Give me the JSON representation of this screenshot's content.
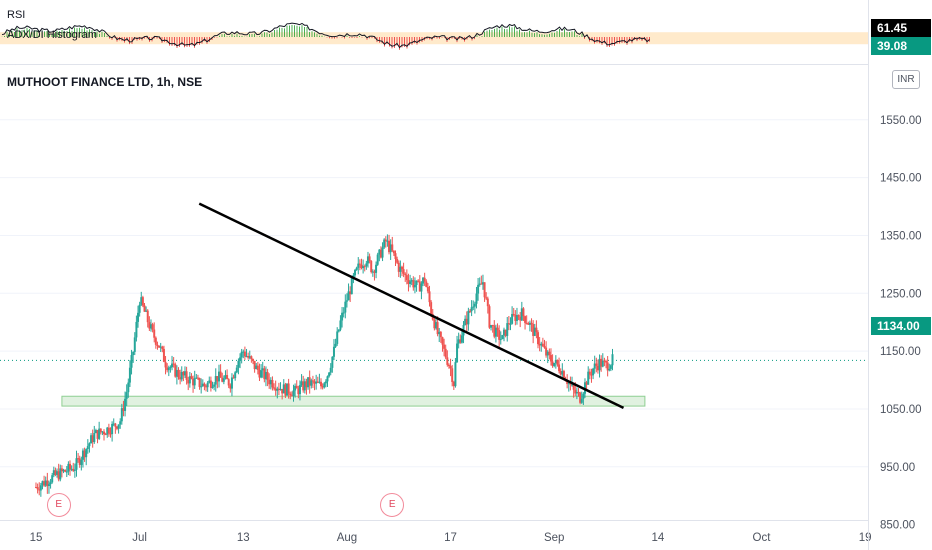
{
  "indicator": {
    "rsi_label": "RSI",
    "adx_label": "ADX/DI Histogram",
    "rsi_value": "61.45",
    "adx_value": "39.08",
    "rsi_tag_color": "#000000",
    "adx_tag_color": "#089981",
    "band_color": "#ffd8a0"
  },
  "main": {
    "title": "MUTHOOT FINANCE LTD, 1h, NSE",
    "currency": "INR",
    "last_price": "1134.00",
    "last_price_color": "#089981",
    "earnings_marker": "E"
  },
  "chart_data": {
    "type": "candlestick",
    "symbol": "MUTHOOT FINANCE LTD",
    "interval": "1h",
    "exchange": "NSE",
    "y_tick_labels": [
      "850.00",
      "950.00",
      "1050.00",
      "1150.00",
      "1250.00",
      "1350.00",
      "1450.00",
      "1550.00"
    ],
    "x_tick_labels": [
      "15",
      "Jul",
      "13",
      "Aug",
      "17",
      "Sep",
      "14",
      "Oct",
      "19"
    ],
    "ylim": [
      820,
      1560
    ],
    "last_price": 1134,
    "up_color": "#26a69a",
    "down_color": "#ef5350",
    "price_path": [
      [
        0,
        915
      ],
      [
        3,
        935
      ],
      [
        6,
        950
      ],
      [
        9,
        1005
      ],
      [
        12,
        1020
      ],
      [
        13,
        1030
      ],
      [
        14,
        1080
      ],
      [
        15,
        1150
      ],
      [
        16,
        1240
      ],
      [
        17,
        1210
      ],
      [
        18,
        1180
      ],
      [
        19,
        1160
      ],
      [
        20,
        1130
      ],
      [
        22,
        1110
      ],
      [
        24,
        1100
      ],
      [
        26,
        1090
      ],
      [
        28,
        1105
      ],
      [
        30,
        1095
      ],
      [
        31,
        1130
      ],
      [
        32,
        1150
      ],
      [
        34,
        1120
      ],
      [
        36,
        1100
      ],
      [
        38,
        1085
      ],
      [
        40,
        1080
      ],
      [
        42,
        1095
      ],
      [
        44,
        1090
      ],
      [
        45,
        1110
      ],
      [
        46,
        1150
      ],
      [
        47,
        1200
      ],
      [
        48,
        1240
      ],
      [
        49,
        1275
      ],
      [
        50,
        1300
      ],
      [
        51,
        1310
      ],
      [
        52,
        1290
      ],
      [
        54,
        1340
      ],
      [
        55,
        1320
      ],
      [
        56,
        1295
      ],
      [
        57,
        1280
      ],
      [
        58,
        1270
      ],
      [
        59,
        1260
      ],
      [
        60,
        1275
      ],
      [
        61,
        1220
      ],
      [
        62,
        1180
      ],
      [
        63,
        1150
      ],
      [
        64,
        1120
      ],
      [
        64.5,
        1095
      ],
      [
        65,
        1160
      ],
      [
        66,
        1190
      ],
      [
        67,
        1220
      ],
      [
        68,
        1250
      ],
      [
        69,
        1270
      ],
      [
        70,
        1200
      ],
      [
        71,
        1180
      ],
      [
        72,
        1170
      ],
      [
        73,
        1200
      ],
      [
        74,
        1210
      ],
      [
        75,
        1215
      ],
      [
        76,
        1200
      ],
      [
        77,
        1180
      ],
      [
        78,
        1160
      ],
      [
        79,
        1140
      ],
      [
        80,
        1130
      ],
      [
        81,
        1120
      ],
      [
        82,
        1100
      ],
      [
        83,
        1080
      ],
      [
        84,
        1070
      ],
      [
        85,
        1100
      ],
      [
        86,
        1120
      ],
      [
        87,
        1130
      ],
      [
        88,
        1125
      ],
      [
        89,
        1134
      ]
    ],
    "x_label_positions": [
      0,
      16,
      32,
      48,
      64,
      80,
      96,
      112,
      128
    ],
    "x_domain": [
      0,
      134
    ],
    "trendline": [
      [
        25.2,
        1405
      ],
      [
        90.7,
        1052
      ]
    ],
    "support_zone": [
      1055,
      1072
    ],
    "support_zone_x": [
      4,
      94
    ],
    "earnings_events_x": [
      3.5,
      55
    ],
    "indicator_scale": [
      0,
      100
    ],
    "rsi_last": 61.45,
    "adx_last": 39.08,
    "indicator_band": [
      30,
      70
    ]
  }
}
